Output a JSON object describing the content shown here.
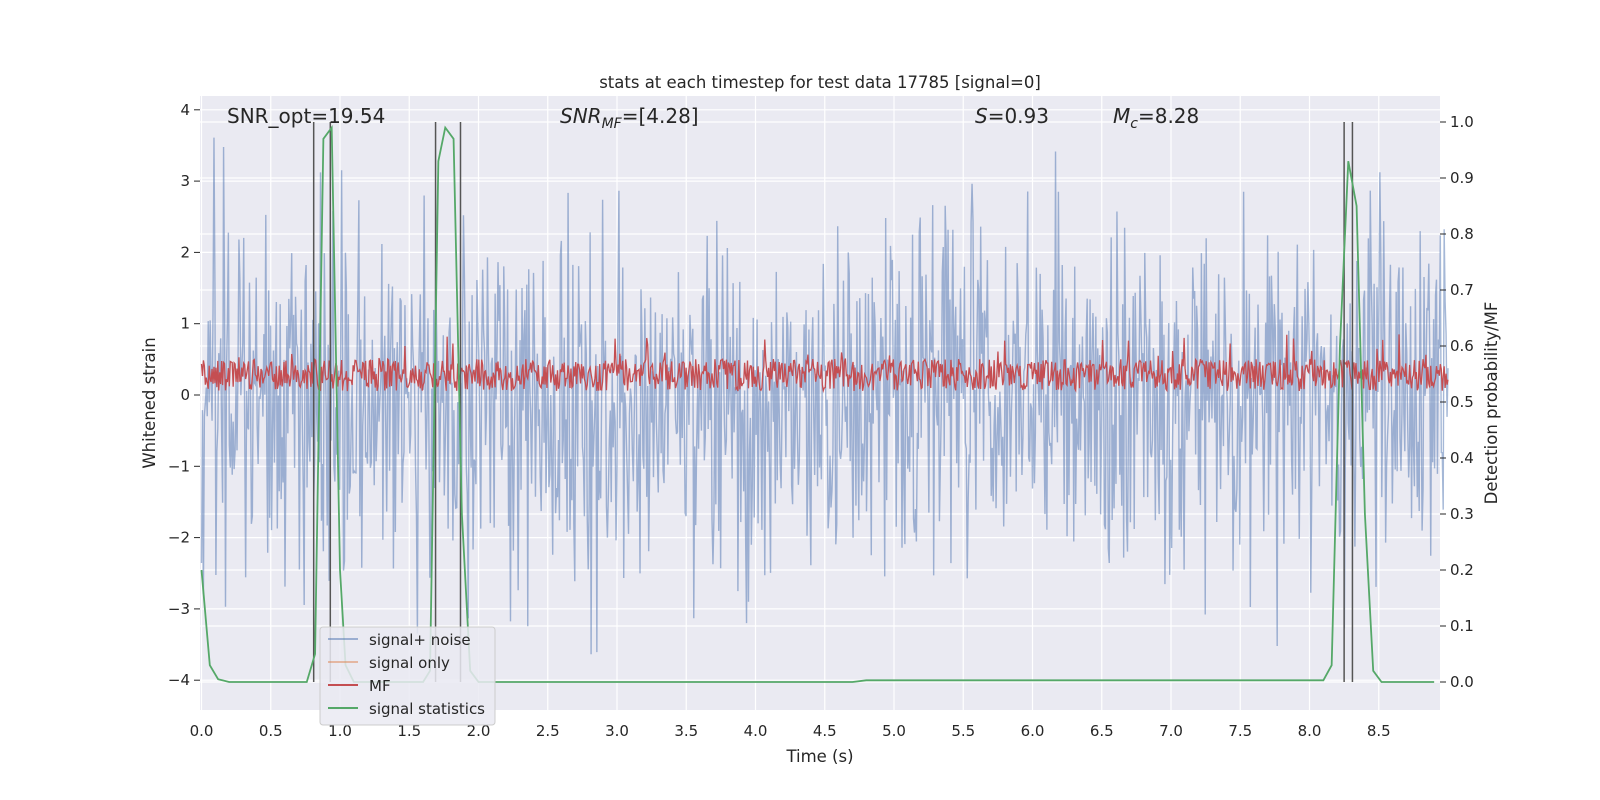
{
  "chart_data": {
    "type": "line",
    "title": "stats at each timestep for test data 17785 [signal=0]",
    "xlabel": "Time (s)",
    "ylabel": "Whitened strain",
    "y2label": "Detection probability/MF",
    "xlim": [
      0.0,
      9.0
    ],
    "ylim": [
      -4.2,
      4.2
    ],
    "y2lim": [
      -0.045,
      1.045
    ],
    "xticks": [
      "0.0",
      "0.5",
      "1.0",
      "1.5",
      "2.0",
      "2.5",
      "3.0",
      "3.5",
      "4.0",
      "4.5",
      "5.0",
      "5.5",
      "6.0",
      "6.5",
      "7.0",
      "7.5",
      "8.0",
      "8.5"
    ],
    "yticks": [
      "−4",
      "−3",
      "−2",
      "−1",
      "0",
      "1",
      "2",
      "3",
      "4"
    ],
    "y2ticks": [
      "0.0",
      "0.1",
      "0.2",
      "0.3",
      "0.4",
      "0.5",
      "0.6",
      "0.7",
      "0.8",
      "0.9",
      "1.0"
    ],
    "grid": true,
    "legend_position": "lower-left",
    "annotations": {
      "snr_opt": "SNR_opt=19.54",
      "snr_mf_sym": "SNR",
      "snr_mf_sub": "MF",
      "snr_mf_val": "=[4.28]",
      "s_sym": "S",
      "s_val": "=0.93",
      "mc_sym": "M",
      "mc_sub": "c",
      "mc_val": "=8.28"
    },
    "series": [
      {
        "name": "signal+ noise",
        "color": "#4c72b0",
        "description_values": {
          "typical_amplitude": 1.3,
          "max_abs": 4.0
        }
      },
      {
        "name": "signal only",
        "color": "#dd8452",
        "values": []
      },
      {
        "name": "MF",
        "color": "#c44e52",
        "description_values": {
          "baseline": 0.25,
          "fluctuation": 0.35
        }
      },
      {
        "name": "signal statistics",
        "color": "#55a868",
        "x": [
          0.0,
          0.06,
          0.12,
          0.2,
          0.4,
          0.5,
          0.76,
          0.82,
          0.88,
          0.94,
          1.0,
          1.04,
          1.1,
          1.6,
          1.65,
          1.71,
          1.76,
          1.82,
          1.88,
          1.94,
          2.0,
          2.06,
          2.5,
          4.7,
          4.8,
          8.1,
          8.16,
          8.22,
          8.28,
          8.34,
          8.4,
          8.46,
          8.52,
          8.9
        ],
        "values": [
          0.2,
          0.03,
          0.005,
          0.0,
          0.0,
          0.0,
          0.0,
          0.05,
          0.97,
          0.99,
          0.2,
          0.03,
          0.0,
          0.0,
          0.02,
          0.93,
          0.99,
          0.97,
          0.3,
          0.02,
          0.0,
          0.0,
          0.0,
          0.0,
          0.003,
          0.003,
          0.03,
          0.6,
          0.93,
          0.85,
          0.3,
          0.02,
          0.0,
          0.0
        ]
      }
    ],
    "vertical_lines": [
      0.81,
      0.93,
      1.69,
      1.87,
      8.25,
      8.31
    ]
  }
}
